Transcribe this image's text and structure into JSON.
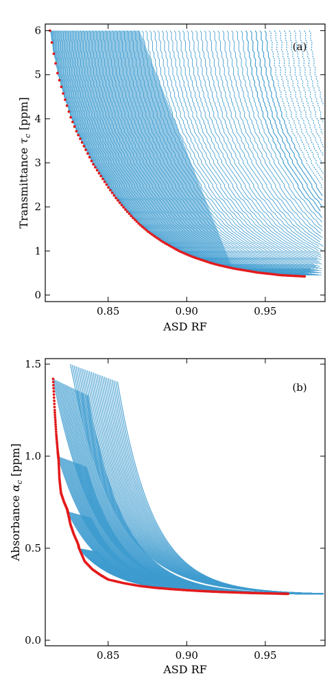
{
  "chart_data": [
    {
      "type": "scatter",
      "panel_label": "(a)",
      "xlabel": "ASD RF",
      "ylabel": "Transmittance τ_c [ppm]",
      "ylabel_parts": {
        "main": "Transmittance ",
        "symbol": "τ",
        "sub": "c",
        "unit": " [ppm]"
      },
      "xlim": [
        0.81,
        0.988
      ],
      "ylim": [
        -0.15,
        6.15
      ],
      "xticks": [
        0.85,
        0.9,
        0.95
      ],
      "xtick_labels": [
        "0.85",
        "0.90",
        "0.95"
      ],
      "yticks": [
        0,
        1,
        2,
        3,
        4,
        5,
        6
      ],
      "ytick_labels": [
        "0",
        "1",
        "2",
        "3",
        "4",
        "5",
        "6"
      ],
      "colors": {
        "cloud": "#3d9bcf",
        "frontier": "#e31a1c"
      },
      "series": [
        {
          "role": "cloud",
          "description_points": [
            [
              0.813,
              6.0
            ],
            [
              0.83,
              3.8
            ],
            [
              0.85,
              2.6
            ],
            [
              0.87,
              1.75
            ],
            [
              0.89,
              1.2
            ],
            [
              0.91,
              0.85
            ],
            [
              0.93,
              0.62
            ],
            [
              0.95,
              0.5
            ],
            [
              0.97,
              0.42
            ],
            [
              0.985,
              0.4
            ]
          ]
        },
        {
          "role": "frontier",
          "x": [
            0.813,
            0.815,
            0.818,
            0.822,
            0.826,
            0.83,
            0.835,
            0.84,
            0.845,
            0.85,
            0.855,
            0.86,
            0.865,
            0.87,
            0.875,
            0.88,
            0.885,
            0.89,
            0.895,
            0.9,
            0.905,
            0.91,
            0.915,
            0.92,
            0.925,
            0.93,
            0.935,
            0.94,
            0.945,
            0.95,
            0.955,
            0.96,
            0.965,
            0.97,
            0.975
          ],
          "y": [
            6.0,
            5.55,
            5.0,
            4.5,
            4.05,
            3.7,
            3.35,
            3.0,
            2.72,
            2.45,
            2.2,
            1.98,
            1.78,
            1.6,
            1.45,
            1.32,
            1.2,
            1.1,
            1.0,
            0.92,
            0.85,
            0.79,
            0.73,
            0.68,
            0.64,
            0.6,
            0.57,
            0.54,
            0.51,
            0.49,
            0.47,
            0.45,
            0.44,
            0.43,
            0.42
          ]
        }
      ]
    },
    {
      "type": "scatter",
      "panel_label": "(b)",
      "xlabel": "ASD RF",
      "ylabel": "Absorbance α_c [ppm]",
      "ylabel_parts": {
        "main": "Absorbance ",
        "symbol": "α",
        "sub": "c",
        "unit": " [ppm]"
      },
      "xlim": [
        0.81,
        0.988
      ],
      "ylim": [
        -0.03,
        1.53
      ],
      "xticks": [
        0.85,
        0.9,
        0.95
      ],
      "xtick_labels": [
        "0.85",
        "0.90",
        "0.95"
      ],
      "yticks": [
        0.0,
        0.5,
        1.0,
        1.5
      ],
      "ytick_labels": [
        "0.0",
        "0.5",
        "1.0",
        "1.5"
      ],
      "colors": {
        "cloud": "#3d9bcf",
        "frontier": "#e31a1c"
      },
      "series": [
        {
          "role": "frontier",
          "x": [
            0.815,
            0.816,
            0.817,
            0.818,
            0.8185,
            0.819,
            0.82,
            0.822,
            0.824,
            0.8245,
            0.826,
            0.828,
            0.831,
            0.8315,
            0.835,
            0.84,
            0.845,
            0.85,
            0.86,
            0.87,
            0.88,
            0.89,
            0.9,
            0.91,
            0.92,
            0.93,
            0.94,
            0.95,
            0.96,
            0.965
          ],
          "y": [
            1.42,
            1.25,
            1.12,
            1.02,
            0.98,
            0.88,
            0.8,
            0.75,
            0.71,
            0.69,
            0.63,
            0.58,
            0.52,
            0.5,
            0.43,
            0.385,
            0.355,
            0.33,
            0.31,
            0.295,
            0.285,
            0.278,
            0.272,
            0.267,
            0.263,
            0.26,
            0.257,
            0.255,
            0.253,
            0.252
          ]
        }
      ]
    }
  ]
}
